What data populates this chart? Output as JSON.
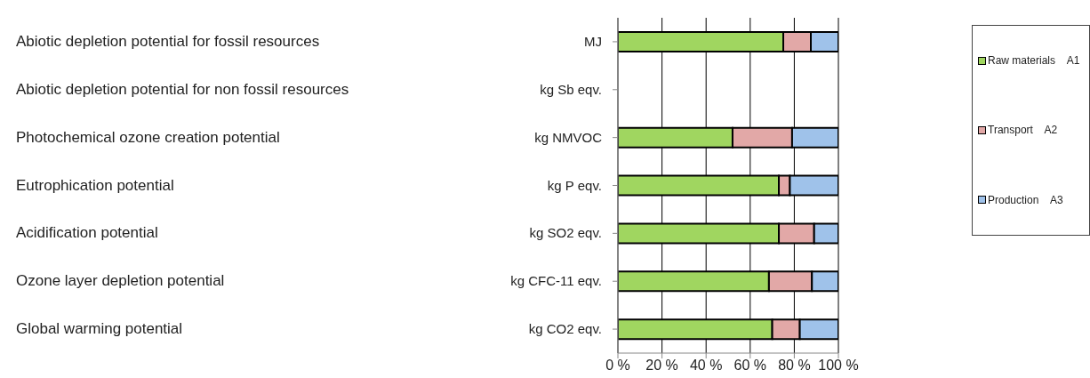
{
  "chart_data": {
    "type": "bar",
    "orientation": "horizontal",
    "stacked": true,
    "categories": [
      "MJ",
      "kg Sb eqv.",
      "kg NMVOC",
      "kg P eqv.",
      "kg SO2 eqv.",
      "kg CFC-11 eqv.",
      "kg CO2 eqv."
    ],
    "series": [
      {
        "name": "Raw materials    A1",
        "color": "#a0d660",
        "values": [
          75,
          null,
          52,
          73,
          73,
          68.5,
          70
        ]
      },
      {
        "name": "Transport    A2",
        "color": "#e2a8a7",
        "values": [
          12.5,
          null,
          27,
          5,
          16,
          19.5,
          12.5
        ]
      },
      {
        "name": "Production    A3",
        "color": "#9fc2ea",
        "values": [
          12.5,
          null,
          21,
          22,
          11,
          12,
          17.5
        ]
      }
    ],
    "xlim": [
      0,
      100
    ],
    "xticks": [
      {
        "value": 0,
        "label": "0 %"
      },
      {
        "value": 20,
        "label": "20 %"
      },
      {
        "value": 40,
        "label": "40 %"
      },
      {
        "value": 60,
        "label": "60 %"
      },
      {
        "value": 80,
        "label": "80 %"
      },
      {
        "value": 100,
        "label": "100 %"
      }
    ],
    "grid": "x",
    "legend": "right",
    "annotations": [
      "Abiotic depletion potential for fossil resources",
      "Abiotic depletion potential for non fossil resources",
      "Photochemical ozone creation potential",
      "Eutrophication potential",
      "Acidification potential",
      "Ozone layer depletion potential",
      "Global warming potential"
    ]
  }
}
